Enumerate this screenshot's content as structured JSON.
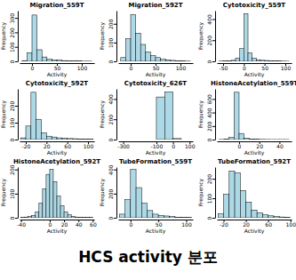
{
  "chart_data": [
    {
      "type": "histogram",
      "title": "Migration_559T",
      "x_label": "Activity",
      "y_label": "Frequency",
      "color": "#add8e6",
      "bins": [
        -20,
        -10,
        0,
        10,
        20,
        30,
        40,
        50,
        60,
        70,
        80,
        90,
        100,
        110,
        120
      ],
      "values": [
        5,
        60,
        320,
        80,
        30,
        15,
        10,
        8,
        5,
        4,
        3,
        2,
        1,
        1
      ],
      "xlim": [
        -25,
        125
      ],
      "xticks": [
        0,
        50,
        100
      ],
      "ylim": [
        0,
        350
      ],
      "yticks": [
        0,
        100,
        200,
        300
      ]
    },
    {
      "type": "histogram",
      "title": "Migration_592T",
      "x_label": "Activity",
      "y_label": "Frequency",
      "color": "#add8e6",
      "bins": [
        -20,
        -10,
        0,
        10,
        20,
        30,
        40,
        50,
        60,
        70,
        80,
        90,
        100,
        110,
        120
      ],
      "values": [
        20,
        120,
        250,
        150,
        90,
        50,
        30,
        20,
        12,
        8,
        5,
        3,
        2,
        1
      ],
      "xlim": [
        -25,
        125
      ],
      "xticks": [
        0,
        50,
        100
      ],
      "ylim": [
        0,
        270
      ],
      "yticks": [
        0,
        100,
        200
      ]
    },
    {
      "type": "histogram",
      "title": "Cytotoxicity_559T",
      "x_label": "Activity",
      "y_label": "Frequency",
      "color": "#add8e6",
      "bins": [
        -60,
        -50,
        -40,
        -30,
        -20,
        -10,
        0,
        10,
        20,
        30,
        40,
        50,
        60,
        70,
        80,
        90,
        100,
        110
      ],
      "values": [
        2,
        3,
        5,
        10,
        30,
        120,
        450,
        80,
        30,
        15,
        10,
        8,
        5,
        4,
        3,
        2,
        1
      ],
      "xlim": [
        -65,
        115
      ],
      "xticks": [
        -50,
        0,
        50,
        100
      ],
      "ylim": [
        0,
        480
      ],
      "yticks": [
        0,
        200,
        400
      ]
    },
    {
      "type": "histogram",
      "title": "Cytotoxicity_592T",
      "x_label": "Activity",
      "y_label": "Frequency",
      "color": "#add8e6",
      "bins": [
        -30,
        -20,
        -10,
        0,
        10,
        20,
        30,
        40,
        50,
        60,
        70,
        80,
        90,
        100,
        110
      ],
      "values": [
        10,
        80,
        280,
        120,
        40,
        20,
        15,
        10,
        8,
        6,
        5,
        4,
        3,
        2
      ],
      "xlim": [
        -32,
        112
      ],
      "xticks": [
        -20,
        20,
        60,
        100
      ],
      "ylim": [
        0,
        300
      ],
      "yticks": [
        0,
        100,
        200
      ]
    },
    {
      "type": "histogram",
      "title": "Cytotoxicity_626T",
      "x_label": "Activity",
      "y_label": "Frequency",
      "color": "#add8e6",
      "bins": [
        -100,
        -50,
        0,
        50
      ],
      "values": [
        420,
        470,
        10
      ],
      "xlim": [
        -330,
        120
      ],
      "xticks": [
        -300,
        -100,
        0,
        100
      ],
      "ylim": [
        0,
        500
      ],
      "yticks": [
        0,
        200,
        400
      ]
    },
    {
      "type": "histogram",
      "title": "HistoneAcetylation_559T",
      "x_label": "Activity",
      "y_label": "Frequency",
      "color": "#add8e6",
      "bins": [
        -20,
        -15,
        -10,
        -5,
        0,
        5,
        10,
        15,
        20,
        25,
        30,
        35,
        40,
        45,
        50
      ],
      "values": [
        2,
        5,
        30,
        700,
        90,
        20,
        8,
        5,
        3,
        2,
        1,
        1,
        1,
        1
      ],
      "xlim": [
        -22,
        52
      ],
      "xticks": [
        0,
        20,
        40
      ],
      "ylim": [
        0,
        750
      ],
      "yticks": [
        0,
        200,
        400,
        600
      ]
    },
    {
      "type": "histogram",
      "title": "HistoneAcetylation_592T",
      "x_label": "Activity",
      "y_label": "Frequency",
      "color": "#add8e6",
      "bins": [
        -40,
        -35,
        -30,
        -25,
        -20,
        -15,
        -10,
        -5,
        0,
        5,
        10,
        15,
        20,
        25,
        30,
        35,
        40,
        45,
        50,
        55,
        60
      ],
      "values": [
        2,
        3,
        5,
        10,
        25,
        60,
        120,
        180,
        200,
        150,
        90,
        50,
        25,
        12,
        6,
        3,
        2,
        1,
        1,
        1
      ],
      "xlim": [
        -42,
        62
      ],
      "xticks": [
        -40,
        0,
        20,
        40,
        60
      ],
      "ylim": [
        0,
        210
      ],
      "yticks": [
        0,
        100,
        200
      ]
    },
    {
      "type": "histogram",
      "title": "TubeFormation_559T",
      "x_label": "Activity",
      "y_label": "Frequency",
      "color": "#add8e6",
      "bins": [
        -20,
        -10,
        0,
        10,
        20,
        30,
        40,
        50,
        60,
        70,
        80,
        90,
        100,
        110
      ],
      "values": [
        30,
        150,
        400,
        250,
        120,
        60,
        30,
        20,
        15,
        10,
        5,
        3,
        2
      ],
      "xlim": [
        -22,
        112
      ],
      "xticks": [
        0,
        50,
        100
      ],
      "ylim": [
        0,
        420
      ],
      "yticks": [
        0,
        200,
        400
      ]
    },
    {
      "type": "histogram",
      "title": "TubeFormation_592T",
      "x_label": "Activity",
      "y_label": "Frequency",
      "color": "#add8e6",
      "bins": [
        -30,
        -20,
        -10,
        0,
        10,
        20,
        30,
        40,
        50,
        60,
        70,
        80,
        90,
        100
      ],
      "values": [
        20,
        120,
        240,
        230,
        140,
        80,
        40,
        25,
        15,
        10,
        6,
        4,
        3
      ],
      "xlim": [
        -32,
        102
      ],
      "xticks": [
        -20,
        20,
        60,
        100
      ],
      "ylim": [
        0,
        260
      ],
      "yticks": [
        0,
        100,
        200
      ]
    }
  ],
  "caption": "HCS activity 분포"
}
